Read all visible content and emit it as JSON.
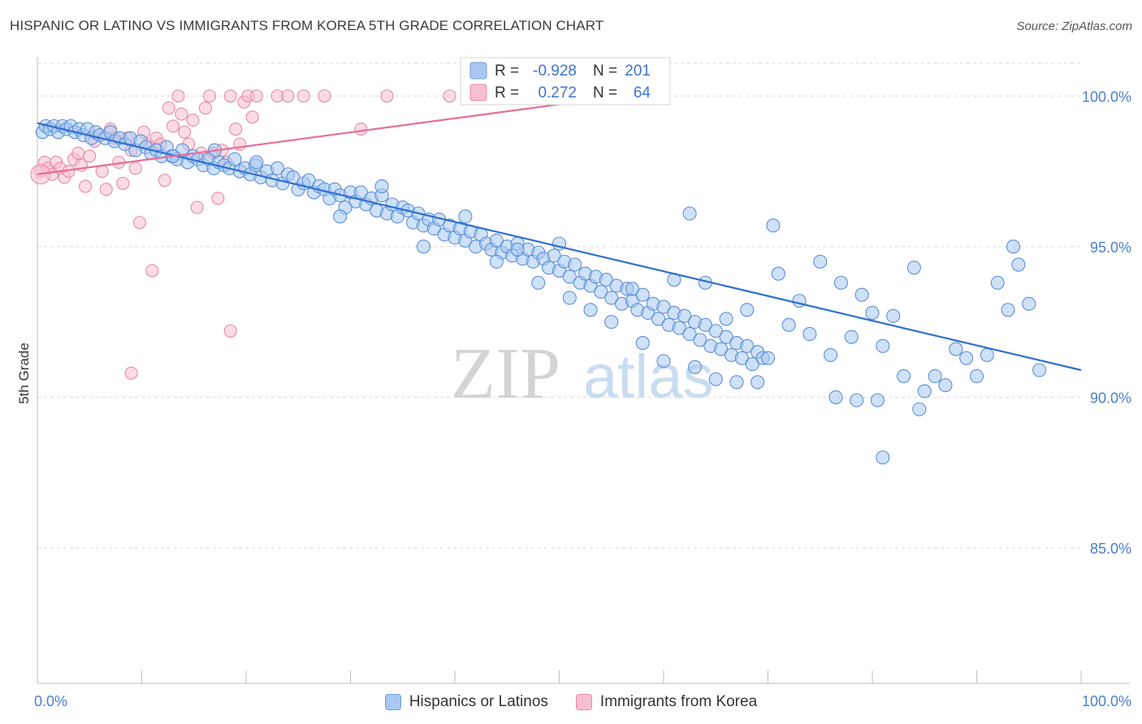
{
  "title": "HISPANIC OR LATINO VS IMMIGRANTS FROM KOREA 5TH GRADE CORRELATION CHART",
  "source": "Source: ZipAtlas.com",
  "watermark": {
    "zip": "ZIP",
    "atlas": "atlas"
  },
  "colors": {
    "blue_fill": "#a8c8f0",
    "blue_stroke": "#5b8fd6",
    "blue_line": "#2f6fd0",
    "pink_fill": "#f7bfd0",
    "pink_stroke": "#e58aa8",
    "pink_line": "#e86d98",
    "axis_label": "#4a7fcf",
    "grid": "#d9d9d9"
  },
  "stats": {
    "r_label": "R =",
    "n_label": "N =",
    "series1": {
      "r": "-0.928",
      "n": "201"
    },
    "series2": {
      "r": "0.272",
      "n": "64"
    }
  },
  "chart_data": {
    "type": "scatter",
    "title": "HISPANIC OR LATINO VS IMMIGRANTS FROM KOREA 5TH GRADE CORRELATION CHART",
    "xlabel": "",
    "ylabel": "5th Grade",
    "xlim": [
      0,
      100
    ],
    "ylim": [
      80.5,
      101.3
    ],
    "x_tick_labels": [
      "0.0%",
      "100.0%"
    ],
    "y_ticks": [
      85,
      90,
      95,
      100
    ],
    "y_tick_labels": [
      "85.0%",
      "90.0%",
      "95.0%",
      "100.0%"
    ],
    "legend": [
      "Hispanics or Latinos",
      "Immigrants from Korea"
    ],
    "series": [
      {
        "name": "Hispanics or Latinos",
        "r": -0.928,
        "n": 201,
        "trend": {
          "x": [
            0,
            100
          ],
          "y": [
            99.1,
            90.9
          ]
        },
        "points": [
          [
            0.5,
            98.8
          ],
          [
            0.8,
            99.0
          ],
          [
            1.2,
            98.9
          ],
          [
            1.6,
            99.0
          ],
          [
            2.0,
            98.8
          ],
          [
            2.4,
            99.0
          ],
          [
            2.8,
            98.9
          ],
          [
            3.2,
            99.0
          ],
          [
            3.6,
            98.8
          ],
          [
            4.0,
            98.9
          ],
          [
            4.4,
            98.7
          ],
          [
            4.8,
            98.9
          ],
          [
            5.2,
            98.6
          ],
          [
            5.6,
            98.8
          ],
          [
            6.0,
            98.7
          ],
          [
            6.5,
            98.6
          ],
          [
            7.0,
            98.8
          ],
          [
            7.4,
            98.5
          ],
          [
            7.9,
            98.6
          ],
          [
            8.4,
            98.4
          ],
          [
            8.9,
            98.6
          ],
          [
            9.4,
            98.2
          ],
          [
            9.9,
            98.5
          ],
          [
            10.4,
            98.3
          ],
          [
            10.9,
            98.1
          ],
          [
            11.4,
            98.2
          ],
          [
            11.9,
            98.0
          ],
          [
            12.4,
            98.3
          ],
          [
            12.9,
            98.0
          ],
          [
            13.4,
            97.9
          ],
          [
            13.9,
            98.2
          ],
          [
            14.4,
            97.8
          ],
          [
            14.9,
            98.0
          ],
          [
            15.4,
            97.9
          ],
          [
            15.9,
            97.7
          ],
          [
            16.4,
            97.9
          ],
          [
            16.9,
            97.6
          ],
          [
            17.4,
            97.8
          ],
          [
            17.9,
            97.7
          ],
          [
            18.4,
            97.6
          ],
          [
            18.9,
            97.9
          ],
          [
            19.4,
            97.5
          ],
          [
            19.9,
            97.6
          ],
          [
            20.4,
            97.4
          ],
          [
            20.9,
            97.7
          ],
          [
            21.4,
            97.3
          ],
          [
            22.0,
            97.5
          ],
          [
            22.5,
            97.2
          ],
          [
            23.0,
            97.6
          ],
          [
            23.5,
            97.1
          ],
          [
            24.0,
            97.4
          ],
          [
            24.5,
            97.3
          ],
          [
            25.0,
            96.9
          ],
          [
            25.5,
            97.1
          ],
          [
            26.0,
            97.2
          ],
          [
            26.5,
            96.8
          ],
          [
            27.0,
            97.0
          ],
          [
            27.5,
            96.9
          ],
          [
            28.0,
            96.6
          ],
          [
            28.5,
            96.9
          ],
          [
            29.0,
            96.7
          ],
          [
            29.5,
            96.3
          ],
          [
            30.0,
            96.8
          ],
          [
            30.5,
            96.5
          ],
          [
            31.0,
            96.8
          ],
          [
            31.5,
            96.4
          ],
          [
            32.0,
            96.6
          ],
          [
            32.5,
            96.2
          ],
          [
            33.0,
            96.7
          ],
          [
            33.5,
            96.1
          ],
          [
            34.0,
            96.4
          ],
          [
            34.5,
            96.0
          ],
          [
            35.0,
            96.3
          ],
          [
            35.5,
            96.2
          ],
          [
            36.0,
            95.8
          ],
          [
            36.5,
            96.1
          ],
          [
            37.0,
            95.7
          ],
          [
            37.5,
            95.9
          ],
          [
            38.0,
            95.6
          ],
          [
            38.5,
            95.9
          ],
          [
            39.0,
            95.4
          ],
          [
            39.5,
            95.7
          ],
          [
            40.0,
            95.3
          ],
          [
            40.5,
            95.6
          ],
          [
            41.0,
            95.2
          ],
          [
            41.5,
            95.5
          ],
          [
            42.0,
            95.0
          ],
          [
            42.5,
            95.4
          ],
          [
            43.0,
            95.1
          ],
          [
            43.5,
            94.9
          ],
          [
            44.0,
            95.2
          ],
          [
            44.5,
            94.8
          ],
          [
            45.0,
            95.0
          ],
          [
            45.5,
            94.7
          ],
          [
            46.0,
            95.1
          ],
          [
            46.5,
            94.6
          ],
          [
            47.0,
            94.9
          ],
          [
            47.5,
            94.5
          ],
          [
            48.0,
            94.8
          ],
          [
            48.5,
            94.6
          ],
          [
            49.0,
            94.3
          ],
          [
            49.5,
            94.7
          ],
          [
            50.0,
            94.2
          ],
          [
            50.5,
            94.5
          ],
          [
            51.0,
            94.0
          ],
          [
            51.5,
            94.4
          ],
          [
            52.0,
            93.8
          ],
          [
            52.5,
            94.1
          ],
          [
            53.0,
            93.7
          ],
          [
            53.5,
            94.0
          ],
          [
            54.0,
            93.5
          ],
          [
            54.5,
            93.9
          ],
          [
            55.0,
            93.3
          ],
          [
            55.5,
            93.7
          ],
          [
            56.0,
            93.1
          ],
          [
            56.5,
            93.6
          ],
          [
            57.0,
            93.2
          ],
          [
            57.5,
            92.9
          ],
          [
            58.0,
            93.4
          ],
          [
            58.5,
            92.8
          ],
          [
            59.0,
            93.1
          ],
          [
            59.5,
            92.6
          ],
          [
            60.0,
            93.0
          ],
          [
            60.5,
            92.4
          ],
          [
            61.0,
            92.8
          ],
          [
            61.5,
            92.3
          ],
          [
            62.0,
            92.7
          ],
          [
            62.5,
            92.1
          ],
          [
            63.0,
            92.5
          ],
          [
            63.5,
            91.9
          ],
          [
            64.0,
            92.4
          ],
          [
            64.5,
            91.7
          ],
          [
            65.0,
            92.2
          ],
          [
            65.5,
            91.6
          ],
          [
            66.0,
            92.0
          ],
          [
            66.5,
            91.4
          ],
          [
            67.0,
            91.8
          ],
          [
            67.5,
            91.3
          ],
          [
            68.0,
            91.7
          ],
          [
            68.5,
            91.1
          ],
          [
            69.0,
            91.5
          ],
          [
            69.5,
            91.3
          ],
          [
            13.0,
            98.0
          ],
          [
            17.0,
            98.2
          ],
          [
            21.0,
            97.8
          ],
          [
            29.0,
            96.0
          ],
          [
            33.0,
            97.0
          ],
          [
            37.0,
            95.0
          ],
          [
            41.0,
            96.0
          ],
          [
            44.0,
            94.5
          ],
          [
            46.0,
            94.9
          ],
          [
            48.0,
            93.8
          ],
          [
            50.0,
            95.1
          ],
          [
            51.0,
            93.3
          ],
          [
            53.0,
            92.9
          ],
          [
            55.0,
            92.5
          ],
          [
            57.0,
            93.6
          ],
          [
            58.0,
            91.8
          ],
          [
            60.0,
            91.2
          ],
          [
            61.0,
            93.9
          ],
          [
            63.0,
            91.0
          ],
          [
            64.0,
            93.8
          ],
          [
            65.0,
            90.6
          ],
          [
            66.0,
            92.6
          ],
          [
            67.0,
            90.5
          ],
          [
            68.0,
            92.9
          ],
          [
            69.0,
            90.5
          ],
          [
            70.0,
            91.3
          ],
          [
            71.0,
            94.1
          ],
          [
            72.0,
            92.4
          ],
          [
            73.0,
            93.2
          ],
          [
            74.0,
            92.1
          ],
          [
            75.0,
            94.5
          ],
          [
            76.0,
            91.4
          ],
          [
            77.0,
            93.8
          ],
          [
            78.0,
            92.0
          ],
          [
            79.0,
            93.4
          ],
          [
            80.0,
            92.8
          ],
          [
            81.0,
            91.7
          ],
          [
            82.0,
            92.7
          ],
          [
            83.0,
            90.7
          ],
          [
            84.0,
            94.3
          ],
          [
            85.0,
            90.2
          ],
          [
            86.0,
            90.7
          ],
          [
            87.0,
            90.4
          ],
          [
            88.0,
            91.6
          ],
          [
            89.0,
            91.3
          ],
          [
            90.0,
            90.7
          ],
          [
            91.0,
            91.4
          ],
          [
            92.0,
            93.8
          ],
          [
            93.0,
            92.9
          ],
          [
            94.0,
            94.4
          ],
          [
            95.0,
            93.1
          ],
          [
            96.0,
            90.9
          ],
          [
            70.5,
            95.7
          ],
          [
            76.5,
            90.0
          ],
          [
            78.5,
            89.9
          ],
          [
            80.5,
            89.9
          ],
          [
            81.0,
            88.0
          ],
          [
            84.5,
            89.6
          ],
          [
            93.5,
            95.0
          ],
          [
            62.5,
            96.1
          ]
        ]
      },
      {
        "name": "Immigrants from Korea",
        "r": 0.272,
        "n": 64,
        "trend": {
          "x": [
            0,
            56
          ],
          "y": [
            97.4,
            100.0
          ]
        },
        "points": [
          [
            0.3,
            97.5
          ],
          [
            0.7,
            97.8
          ],
          [
            1.0,
            97.6
          ],
          [
            1.4,
            97.4
          ],
          [
            1.8,
            97.8
          ],
          [
            2.2,
            97.6
          ],
          [
            2.6,
            97.3
          ],
          [
            3.0,
            97.5
          ],
          [
            3.5,
            97.9
          ],
          [
            3.9,
            98.1
          ],
          [
            4.2,
            97.7
          ],
          [
            4.6,
            97.0
          ],
          [
            5.0,
            98.0
          ],
          [
            5.5,
            98.5
          ],
          [
            5.9,
            98.7
          ],
          [
            6.2,
            97.5
          ],
          [
            6.6,
            96.9
          ],
          [
            7.0,
            98.9
          ],
          [
            7.4,
            98.6
          ],
          [
            7.8,
            97.8
          ],
          [
            8.2,
            97.1
          ],
          [
            8.6,
            98.6
          ],
          [
            9.0,
            98.2
          ],
          [
            9.4,
            97.6
          ],
          [
            9.8,
            95.8
          ],
          [
            10.2,
            98.8
          ],
          [
            10.6,
            98.4
          ],
          [
            11.0,
            94.2
          ],
          [
            11.4,
            98.6
          ],
          [
            11.8,
            98.4
          ],
          [
            12.2,
            97.2
          ],
          [
            12.6,
            99.6
          ],
          [
            13.0,
            99.0
          ],
          [
            13.5,
            100.0
          ],
          [
            13.8,
            99.4
          ],
          [
            14.1,
            98.8
          ],
          [
            14.5,
            98.4
          ],
          [
            14.9,
            99.2
          ],
          [
            15.3,
            96.3
          ],
          [
            15.7,
            98.1
          ],
          [
            16.1,
            99.6
          ],
          [
            16.5,
            100.0
          ],
          [
            16.9,
            98.1
          ],
          [
            17.3,
            96.6
          ],
          [
            17.7,
            98.2
          ],
          [
            18.1,
            97.8
          ],
          [
            18.5,
            100.0
          ],
          [
            19.0,
            98.9
          ],
          [
            19.4,
            98.4
          ],
          [
            19.8,
            99.8
          ],
          [
            20.2,
            100.0
          ],
          [
            20.6,
            99.3
          ],
          [
            21.0,
            100.0
          ],
          [
            23.0,
            100.0
          ],
          [
            24.0,
            100.0
          ],
          [
            25.5,
            100.0
          ],
          [
            27.5,
            100.0
          ],
          [
            31.0,
            98.9
          ],
          [
            33.5,
            100.0
          ],
          [
            39.5,
            100.0
          ],
          [
            44.0,
            100.0
          ],
          [
            59.0,
            100.0
          ],
          [
            9.0,
            90.8
          ],
          [
            18.5,
            92.2
          ]
        ]
      }
    ]
  }
}
